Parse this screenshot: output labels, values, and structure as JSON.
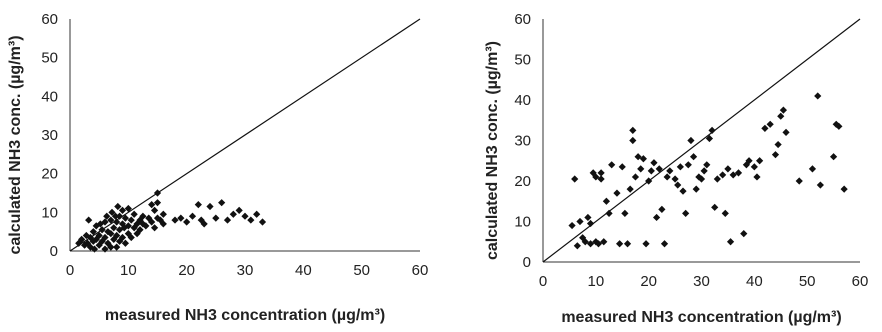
{
  "chart_data": [
    {
      "type": "scatter",
      "title": "",
      "xlabel": "measured NH3 concentration (µg/m³)",
      "ylabel": "calculated NH3 conc. (µg/m³)",
      "xlim": [
        0,
        60
      ],
      "ylim": [
        0,
        60
      ],
      "xticks": [
        "0",
        "10",
        "20",
        "30",
        "40",
        "50",
        "60"
      ],
      "yticks": [
        "0",
        "10",
        "20",
        "30",
        "40",
        "50",
        "60"
      ],
      "reference_line": {
        "from": [
          0,
          0
        ],
        "to": [
          60,
          60
        ]
      },
      "grid": false,
      "points": [
        [
          1.5,
          2.0
        ],
        [
          2.0,
          3.0
        ],
        [
          2.5,
          1.5
        ],
        [
          2.8,
          4.0
        ],
        [
          3.0,
          2.0
        ],
        [
          3.2,
          8.0
        ],
        [
          3.5,
          1.0
        ],
        [
          3.5,
          3.5
        ],
        [
          4.0,
          2.5
        ],
        [
          4.0,
          5.0
        ],
        [
          4.2,
          0.5
        ],
        [
          4.5,
          3.0
        ],
        [
          4.5,
          6.5
        ],
        [
          5.0,
          1.5
        ],
        [
          5.0,
          4.0
        ],
        [
          5.2,
          7.0
        ],
        [
          5.5,
          2.5
        ],
        [
          5.5,
          5.5
        ],
        [
          6.0,
          0.5
        ],
        [
          6.0,
          3.5
        ],
        [
          6.0,
          7.5
        ],
        [
          6.3,
          9.0
        ],
        [
          6.5,
          2.0
        ],
        [
          6.5,
          5.0
        ],
        [
          7.0,
          1.0
        ],
        [
          7.0,
          4.5
        ],
        [
          7.0,
          8.0
        ],
        [
          7.2,
          10.0
        ],
        [
          7.5,
          3.0
        ],
        [
          7.5,
          6.0
        ],
        [
          7.8,
          9.0
        ],
        [
          8.0,
          1.0
        ],
        [
          8.0,
          4.0
        ],
        [
          8.0,
          7.5
        ],
        [
          8.2,
          11.5
        ],
        [
          8.5,
          2.5
        ],
        [
          8.5,
          5.5
        ],
        [
          8.5,
          9.0
        ],
        [
          9.0,
          3.5
        ],
        [
          9.0,
          7.0
        ],
        [
          9.0,
          10.5
        ],
        [
          9.3,
          6.0
        ],
        [
          9.5,
          2.0
        ],
        [
          9.5,
          8.5
        ],
        [
          10.0,
          4.5
        ],
        [
          10.0,
          6.5
        ],
        [
          10.0,
          11.0
        ],
        [
          10.5,
          8.0
        ],
        [
          10.5,
          3.5
        ],
        [
          11.0,
          6.0
        ],
        [
          11.0,
          9.5
        ],
        [
          11.5,
          4.5
        ],
        [
          11.5,
          7.0
        ],
        [
          12.0,
          8.0
        ],
        [
          12.0,
          5.5
        ],
        [
          12.5,
          9.0
        ],
        [
          12.5,
          7.0
        ],
        [
          13.0,
          6.5
        ],
        [
          13.5,
          8.5
        ],
        [
          14.0,
          7.5
        ],
        [
          14.0,
          12.0
        ],
        [
          14.5,
          10.5
        ],
        [
          14.5,
          6.0
        ],
        [
          15.0,
          15.0
        ],
        [
          15.0,
          12.5
        ],
        [
          15.0,
          8.5
        ],
        [
          15.5,
          8.0
        ],
        [
          16.0,
          7.0
        ],
        [
          16.0,
          9.5
        ],
        [
          18.0,
          8.0
        ],
        [
          19.0,
          8.5
        ],
        [
          20.0,
          7.5
        ],
        [
          21.0,
          9.0
        ],
        [
          22.0,
          12.0
        ],
        [
          22.5,
          8.0
        ],
        [
          23.0,
          7.0
        ],
        [
          24.0,
          11.5
        ],
        [
          25.0,
          8.5
        ],
        [
          26.0,
          12.5
        ],
        [
          27.0,
          8.0
        ],
        [
          28.0,
          9.5
        ],
        [
          29.0,
          10.5
        ],
        [
          30.0,
          9.0
        ],
        [
          31.0,
          8.0
        ],
        [
          32.0,
          9.5
        ],
        [
          33.0,
          7.5
        ]
      ]
    },
    {
      "type": "scatter",
      "title": "",
      "xlabel": "measured NH3 concentration (µg/m³)",
      "ylabel": "calculated NH3 conc. (µg/m³)",
      "xlim": [
        0,
        60
      ],
      "ylim": [
        0,
        60
      ],
      "xticks": [
        "0",
        "10",
        "20",
        "30",
        "40",
        "50",
        "60"
      ],
      "yticks": [
        "0",
        "10",
        "20",
        "30",
        "40",
        "50",
        "60"
      ],
      "reference_line": {
        "from": [
          0,
          0
        ],
        "to": [
          60,
          60
        ]
      },
      "grid": false,
      "points": [
        [
          5.5,
          9.0
        ],
        [
          6.0,
          20.5
        ],
        [
          6.5,
          4.0
        ],
        [
          7.0,
          10.0
        ],
        [
          7.5,
          6.0
        ],
        [
          8.0,
          5.0
        ],
        [
          8.5,
          11.0
        ],
        [
          9.0,
          4.5
        ],
        [
          9.0,
          9.5
        ],
        [
          9.5,
          22.0
        ],
        [
          10.0,
          5.0
        ],
        [
          10.0,
          21.0
        ],
        [
          10.5,
          4.5
        ],
        [
          11.0,
          20.5
        ],
        [
          11.0,
          22.0
        ],
        [
          11.5,
          5.0
        ],
        [
          12.0,
          15.0
        ],
        [
          12.5,
          12.0
        ],
        [
          13.0,
          24.0
        ],
        [
          14.0,
          17.0
        ],
        [
          14.5,
          4.5
        ],
        [
          15.0,
          23.5
        ],
        [
          15.5,
          12.0
        ],
        [
          16.0,
          4.5
        ],
        [
          16.5,
          18.0
        ],
        [
          17.0,
          30.0
        ],
        [
          17.0,
          32.5
        ],
        [
          17.5,
          21.0
        ],
        [
          18.0,
          26.0
        ],
        [
          18.5,
          23.0
        ],
        [
          19.0,
          25.5
        ],
        [
          19.5,
          4.5
        ],
        [
          20.0,
          20.0
        ],
        [
          20.5,
          22.5
        ],
        [
          21.0,
          24.5
        ],
        [
          21.5,
          11.0
        ],
        [
          22.0,
          23.0
        ],
        [
          22.5,
          13.0
        ],
        [
          23.0,
          4.5
        ],
        [
          23.5,
          21.0
        ],
        [
          24.0,
          22.5
        ],
        [
          25.0,
          20.5
        ],
        [
          25.5,
          19.0
        ],
        [
          26.0,
          23.5
        ],
        [
          26.5,
          17.5
        ],
        [
          27.0,
          12.0
        ],
        [
          27.5,
          24.0
        ],
        [
          28.0,
          30.0
        ],
        [
          28.5,
          26.0
        ],
        [
          29.0,
          18.0
        ],
        [
          29.5,
          21.0
        ],
        [
          30.0,
          20.5
        ],
        [
          30.5,
          22.5
        ],
        [
          31.0,
          24.0
        ],
        [
          31.5,
          30.5
        ],
        [
          32.0,
          32.5
        ],
        [
          32.5,
          13.5
        ],
        [
          33.0,
          20.5
        ],
        [
          34.0,
          21.5
        ],
        [
          34.5,
          12.0
        ],
        [
          35.0,
          23.0
        ],
        [
          35.5,
          5.0
        ],
        [
          36.0,
          21.5
        ],
        [
          37.0,
          22.0
        ],
        [
          38.0,
          7.0
        ],
        [
          38.5,
          24.0
        ],
        [
          39.0,
          25.0
        ],
        [
          40.0,
          23.5
        ],
        [
          40.5,
          21.0
        ],
        [
          41.0,
          25.0
        ],
        [
          42.0,
          33.0
        ],
        [
          43.0,
          34.0
        ],
        [
          44.0,
          26.5
        ],
        [
          44.5,
          29.0
        ],
        [
          45.0,
          36.0
        ],
        [
          45.5,
          37.5
        ],
        [
          46.0,
          32.0
        ],
        [
          48.5,
          20.0
        ],
        [
          51.0,
          23.0
        ],
        [
          52.0,
          41.0
        ],
        [
          52.5,
          19.0
        ],
        [
          55.0,
          26.0
        ],
        [
          55.5,
          34.0
        ],
        [
          56.0,
          33.5
        ],
        [
          57.0,
          18.0
        ]
      ]
    }
  ]
}
